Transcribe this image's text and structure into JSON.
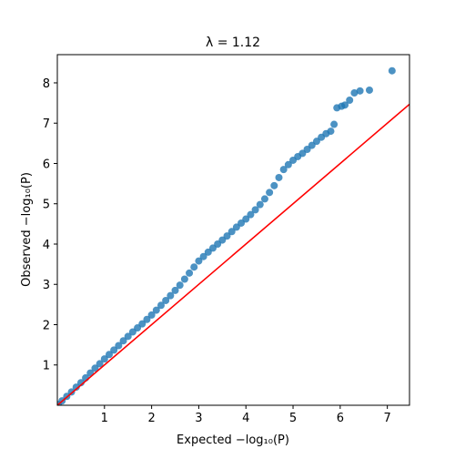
{
  "chart_data": {
    "type": "scatter",
    "title": "λ = 1.12",
    "xlabel": "Expected −log₁₀(P)",
    "ylabel": "Observed −log₁₀(P)",
    "xlim": [
      0,
      7.47
    ],
    "ylim": [
      0,
      8.7
    ],
    "xticks": [
      1,
      2,
      3,
      4,
      5,
      6,
      7
    ],
    "yticks": [
      1,
      2,
      3,
      4,
      5,
      6,
      7,
      8
    ],
    "series": [
      {
        "color": "#1f77b4",
        "x": [
          0.02,
          0.1,
          0.2,
          0.3,
          0.4,
          0.5,
          0.6,
          0.7,
          0.8,
          0.9,
          1.0,
          1.1,
          1.2,
          1.3,
          1.4,
          1.5,
          1.6,
          1.7,
          1.8,
          1.9,
          2.0,
          2.1,
          2.2,
          2.3,
          2.4,
          2.5,
          2.6,
          2.7,
          2.8,
          2.9,
          3.0,
          3.1,
          3.2,
          3.3,
          3.4,
          3.5,
          3.6,
          3.7,
          3.8,
          3.9,
          4.0,
          4.1,
          4.2,
          4.3,
          4.4,
          4.5,
          4.6,
          4.7,
          4.8,
          4.9,
          5.0,
          5.1,
          5.2,
          5.3,
          5.4,
          5.5,
          5.6,
          5.7,
          5.8,
          5.87,
          5.93,
          6.03,
          6.1,
          6.2,
          6.3,
          6.42,
          6.62,
          7.1
        ],
        "values": [
          0.02,
          0.11,
          0.22,
          0.33,
          0.45,
          0.56,
          0.68,
          0.8,
          0.92,
          1.03,
          1.15,
          1.26,
          1.37,
          1.48,
          1.6,
          1.71,
          1.82,
          1.92,
          2.02,
          2.13,
          2.24,
          2.36,
          2.48,
          2.6,
          2.72,
          2.85,
          2.98,
          3.13,
          3.28,
          3.43,
          3.58,
          3.69,
          3.8,
          3.9,
          4.0,
          4.1,
          4.2,
          4.31,
          4.42,
          4.52,
          4.62,
          4.73,
          4.85,
          4.98,
          5.12,
          5.28,
          5.45,
          5.65,
          5.85,
          5.97,
          6.08,
          6.17,
          6.25,
          6.35,
          6.45,
          6.55,
          6.65,
          6.74,
          6.8,
          6.97,
          7.38,
          7.42,
          7.45,
          7.57,
          7.75,
          7.8,
          7.82,
          8.3
        ]
      }
    ],
    "reference_line": {
      "x": [
        0,
        7.47
      ],
      "values": [
        0,
        7.47
      ],
      "color": "#ff0000"
    }
  }
}
